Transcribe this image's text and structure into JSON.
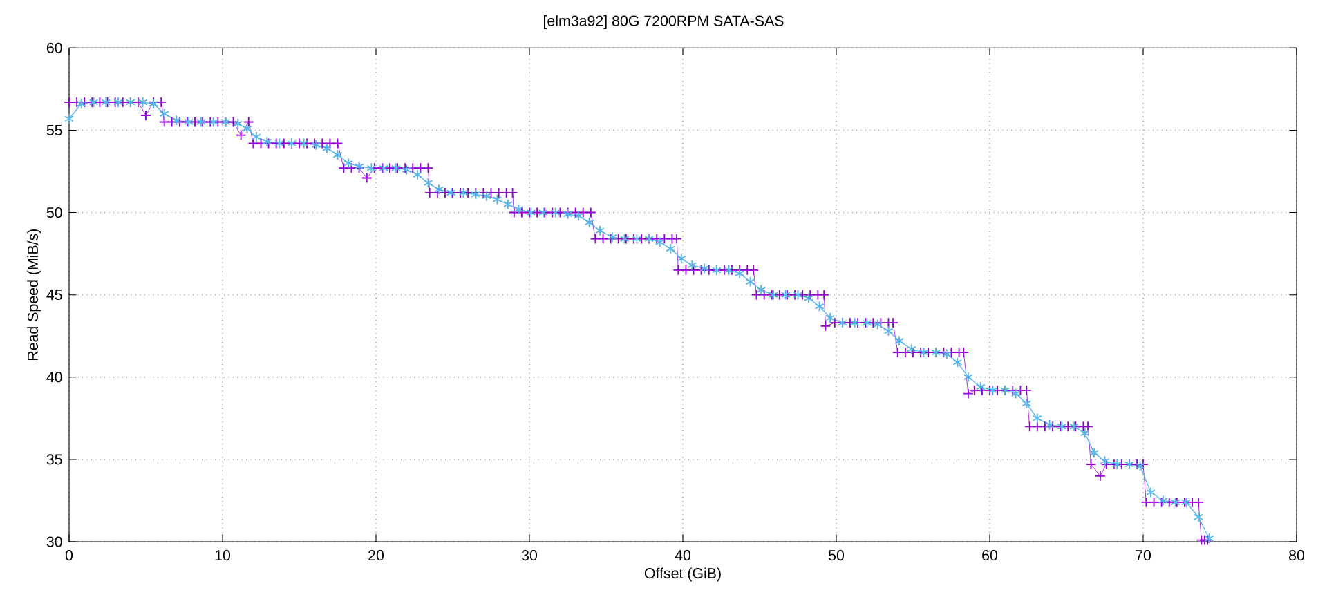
{
  "chart_data": {
    "type": "line",
    "title": "[elm3a92] 80G 7200RPM SATA-SAS",
    "xlabel": "Offset (GiB)",
    "ylabel": "Read Speed (MiB/s)",
    "xlim": [
      0,
      80
    ],
    "ylim": [
      30,
      60
    ],
    "xticks": [
      0,
      10,
      20,
      30,
      40,
      50,
      60,
      70,
      80
    ],
    "yticks": [
      30,
      35,
      40,
      45,
      50,
      55,
      60
    ],
    "grid": true,
    "series": [
      {
        "marker": "cross",
        "color": "#9400d3",
        "x": [
          0,
          0.5,
          1,
          1.5,
          2,
          2.5,
          3,
          3.5,
          4,
          4.5,
          5,
          5.5,
          6,
          6.2,
          6.7,
          7.2,
          7.7,
          8.2,
          8.7,
          9.2,
          9.7,
          10.2,
          10.7,
          11.2,
          11.7,
          12,
          12.5,
          13,
          13.5,
          14,
          14.5,
          15,
          15.5,
          16,
          16.5,
          17,
          17.5,
          17.9,
          18.4,
          18.9,
          19.4,
          19.9,
          20.4,
          20.9,
          21.4,
          21.9,
          22.4,
          22.9,
          23.4,
          23.5,
          24,
          24.5,
          25,
          25.5,
          26,
          26.5,
          27,
          27.5,
          28,
          28.5,
          28.9,
          29,
          29.5,
          30,
          30.5,
          31,
          31.5,
          32,
          32.5,
          33,
          33.5,
          34,
          34.3,
          34.8,
          35.3,
          35.8,
          36.3,
          36.8,
          37.3,
          37.8,
          38.3,
          38.8,
          39.3,
          39.6,
          39.7,
          40.2,
          40.7,
          41.2,
          41.7,
          42.2,
          42.7,
          43.2,
          43.7,
          44.2,
          44.6,
          44.8,
          45.3,
          45.8,
          46.3,
          46.8,
          47.3,
          47.8,
          48.3,
          48.8,
          49.2,
          49.3,
          49.9,
          50.4,
          50.9,
          51.4,
          51.9,
          52.4,
          52.9,
          53.4,
          53.7,
          54,
          54.5,
          55,
          55.5,
          56,
          56.5,
          57,
          57.5,
          58,
          58.3,
          58.6,
          59,
          59.5,
          60,
          60.5,
          61,
          61.5,
          62,
          62.4,
          62.6,
          63.1,
          63.6,
          64.1,
          64.6,
          65.1,
          65.6,
          66.1,
          66.4,
          66.6,
          67.2,
          67.6,
          68.1,
          68.6,
          69.1,
          69.6,
          70,
          70.2,
          70.7,
          71.2,
          71.7,
          72.2,
          72.7,
          73.2,
          73.6,
          73.8,
          74,
          74.2
        ],
        "values": [
          56.7,
          56.7,
          56.7,
          56.7,
          56.7,
          56.7,
          56.7,
          56.7,
          56.7,
          56.7,
          55.9,
          56.7,
          56.7,
          55.5,
          55.5,
          55.5,
          55.5,
          55.5,
          55.5,
          55.5,
          55.5,
          55.5,
          55.5,
          54.7,
          55.5,
          54.2,
          54.2,
          54.2,
          54.2,
          54.2,
          54.2,
          54.2,
          54.2,
          54.2,
          54.2,
          54.2,
          54.2,
          52.7,
          52.7,
          52.7,
          52.1,
          52.7,
          52.7,
          52.7,
          52.7,
          52.7,
          52.7,
          52.7,
          52.7,
          51.2,
          51.2,
          51.2,
          51.2,
          51.2,
          51.2,
          51.2,
          51.2,
          51.2,
          51.2,
          51.2,
          51.2,
          50.0,
          50.0,
          50.0,
          50.0,
          50.0,
          50.0,
          50.0,
          50.0,
          50.0,
          50.0,
          50.0,
          48.4,
          48.4,
          48.4,
          48.4,
          48.4,
          48.4,
          48.4,
          48.4,
          48.4,
          48.4,
          48.4,
          48.4,
          46.5,
          46.5,
          46.5,
          46.5,
          46.5,
          46.5,
          46.5,
          46.5,
          46.5,
          46.5,
          46.5,
          45.0,
          45.0,
          45.0,
          45.0,
          45.0,
          45.0,
          45.0,
          45.0,
          45.0,
          45.0,
          43.1,
          43.3,
          43.3,
          43.3,
          43.3,
          43.3,
          43.3,
          43.3,
          43.3,
          43.3,
          41.5,
          41.5,
          41.5,
          41.5,
          41.5,
          41.5,
          41.5,
          41.5,
          41.5,
          41.5,
          39.0,
          39.2,
          39.2,
          39.2,
          39.2,
          39.2,
          39.2,
          39.2,
          39.2,
          37.0,
          37.0,
          37.0,
          37.0,
          37.0,
          37.0,
          37.0,
          37.0,
          37.0,
          34.7,
          34.0,
          34.7,
          34.7,
          34.7,
          34.7,
          34.7,
          34.7,
          32.4,
          32.4,
          32.4,
          32.4,
          32.4,
          32.4,
          32.4,
          32.4,
          30.1,
          30.1,
          30.1
        ]
      },
      {
        "marker": "cross",
        "color": "#56b4e9",
        "x": [
          0,
          0.8,
          1.6,
          2.4,
          3.2,
          4,
          4.8,
          5.5,
          6.2,
          7,
          7.8,
          8.6,
          9.4,
          10.2,
          11,
          11.6,
          12.2,
          12.9,
          13.7,
          14.5,
          15.3,
          16.1,
          16.8,
          17.5,
          18.2,
          18.9,
          19.7,
          20.5,
          21.3,
          22,
          22.7,
          23.4,
          24.1,
          24.9,
          25.7,
          26.5,
          27.2,
          27.9,
          28.6,
          29.3,
          30.1,
          30.9,
          31.7,
          32.5,
          33.2,
          33.9,
          34.6,
          35.4,
          36.2,
          37,
          37.8,
          38.5,
          39.2,
          39.9,
          40.6,
          41.4,
          42.2,
          43,
          43.7,
          44.4,
          45.1,
          45.9,
          46.7,
          47.5,
          48.2,
          48.9,
          49.6,
          50.4,
          51.2,
          52,
          52.7,
          53.4,
          54.1,
          54.9,
          55.7,
          56.5,
          57.2,
          57.9,
          58.6,
          59.4,
          60.2,
          61,
          61.7,
          62.4,
          63.1,
          63.9,
          64.7,
          65.5,
          66.2,
          66.8,
          67.5,
          68.3,
          69.1,
          69.8,
          70.5,
          71.3,
          72.1,
          72.8,
          73.6,
          74.3
        ],
        "values": [
          55.7,
          56.6,
          56.7,
          56.7,
          56.7,
          56.7,
          56.7,
          56.6,
          56.0,
          55.6,
          55.5,
          55.5,
          55.5,
          55.5,
          55.4,
          55.1,
          54.6,
          54.3,
          54.2,
          54.2,
          54.2,
          54.1,
          53.9,
          53.5,
          53.0,
          52.8,
          52.7,
          52.7,
          52.7,
          52.6,
          52.3,
          51.8,
          51.4,
          51.2,
          51.2,
          51.1,
          51.0,
          50.8,
          50.5,
          50.2,
          50.0,
          50.0,
          50.0,
          49.9,
          49.8,
          49.4,
          48.9,
          48.5,
          48.4,
          48.4,
          48.4,
          48.2,
          47.8,
          47.2,
          46.8,
          46.6,
          46.5,
          46.5,
          46.3,
          45.8,
          45.3,
          45.0,
          45.0,
          45.0,
          44.8,
          44.3,
          43.6,
          43.3,
          43.3,
          43.3,
          43.2,
          42.8,
          42.2,
          41.7,
          41.5,
          41.5,
          41.4,
          40.9,
          40.0,
          39.4,
          39.2,
          39.2,
          39.0,
          38.4,
          37.5,
          37.1,
          37.0,
          37.0,
          36.6,
          35.4,
          34.9,
          34.7,
          34.7,
          34.6,
          33.0,
          32.5,
          32.4,
          32.4,
          31.5,
          30.2
        ]
      }
    ]
  }
}
